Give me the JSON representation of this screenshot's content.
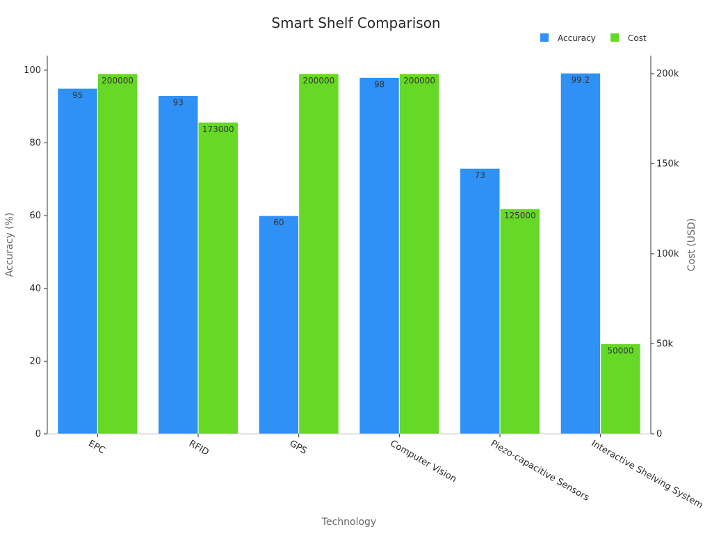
{
  "chart_data": {
    "type": "bar",
    "title": "Smart Shelf Comparison",
    "xlabel": "Technology",
    "categories": [
      "EPC",
      "RFID",
      "GPS",
      "Computer Vision",
      "Piezo-capacitive Sensors",
      "Interactive Shelving System"
    ],
    "series": [
      {
        "name": "Accuracy",
        "axis": "left",
        "color": "#2f91f5",
        "values": [
          95,
          93,
          60,
          98,
          73,
          99.2
        ],
        "labels": [
          "95",
          "93",
          "60",
          "98",
          "73",
          "99.2"
        ]
      },
      {
        "name": "Cost",
        "axis": "right",
        "color": "#66d926",
        "values": [
          200000,
          173000,
          200000,
          200000,
          125000,
          50000
        ],
        "labels": [
          "200000",
          "173000",
          "200000",
          "200000",
          "125000",
          "50000"
        ]
      }
    ],
    "y_left": {
      "label": "Accuracy (%)",
      "range": [
        0,
        104
      ],
      "ticks": [
        0,
        20,
        40,
        60,
        80,
        100
      ],
      "tick_labels": [
        "0",
        "20",
        "40",
        "60",
        "80",
        "100"
      ]
    },
    "y_right": {
      "label": "Cost (USD)",
      "range": [
        0,
        210000
      ],
      "ticks": [
        0,
        50000,
        100000,
        150000,
        200000
      ],
      "tick_labels": [
        "0",
        "50k",
        "100k",
        "150k",
        "200k"
      ]
    },
    "legend": {
      "position": "top-right",
      "items": [
        {
          "name": "Accuracy",
          "color": "#2f91f5"
        },
        {
          "name": "Cost",
          "color": "#66d926"
        }
      ]
    },
    "grid": false
  }
}
